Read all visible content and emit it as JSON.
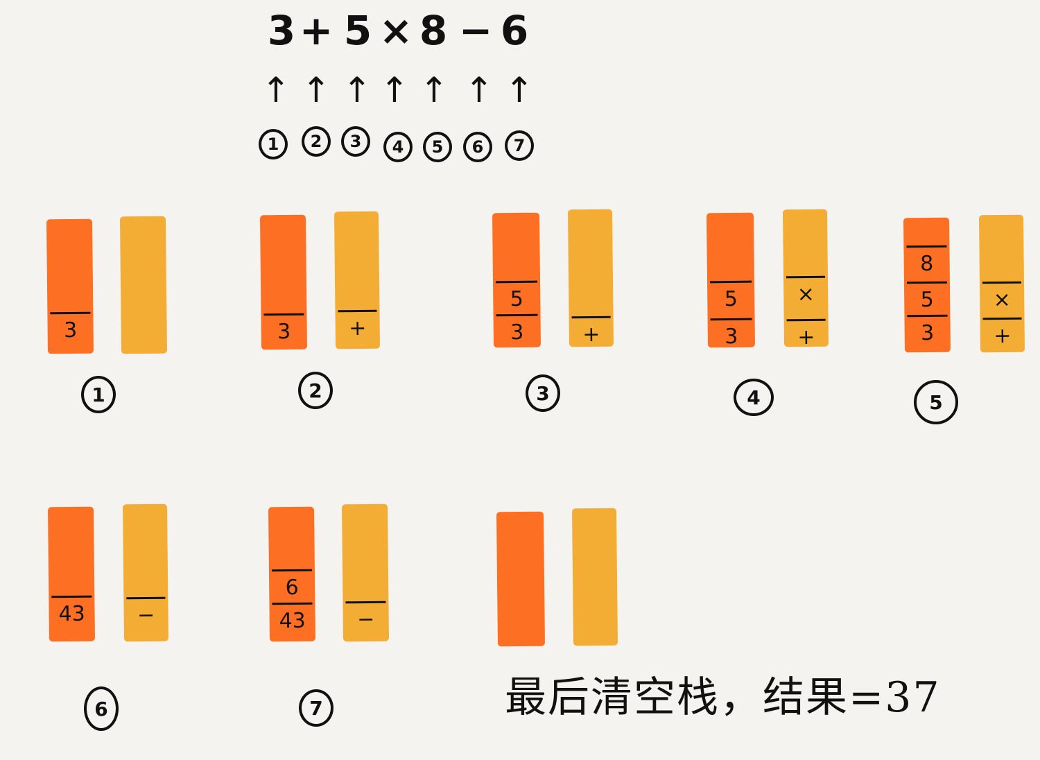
{
  "expression": {
    "tokens": [
      "3",
      "+",
      "5",
      "×",
      "8",
      "−",
      "6"
    ],
    "arrow": "↑",
    "step_numbers": [
      "1",
      "2",
      "3",
      "4",
      "5",
      "6",
      "7"
    ]
  },
  "steps": [
    {
      "label": "1",
      "numbers": [
        "3"
      ],
      "operators": []
    },
    {
      "label": "2",
      "numbers": [
        "3"
      ],
      "operators": [
        "+"
      ]
    },
    {
      "label": "3",
      "numbers": [
        "3",
        "5"
      ],
      "operators": [
        "+"
      ]
    },
    {
      "label": "4",
      "numbers": [
        "3",
        "5"
      ],
      "operators": [
        "+",
        "×"
      ]
    },
    {
      "label": "5",
      "numbers": [
        "3",
        "5",
        "8"
      ],
      "operators": [
        "+",
        "×"
      ]
    },
    {
      "label": "6",
      "numbers": [
        "43"
      ],
      "operators": [
        "−"
      ]
    },
    {
      "label": "7",
      "numbers": [
        "43",
        "6"
      ],
      "operators": [
        "−"
      ]
    }
  ],
  "final_note": "最后清空栈，结果=37",
  "colors": {
    "number_stack": "#fd6f22",
    "operator_stack": "#f3ad35",
    "background": "#f4f3ef"
  }
}
